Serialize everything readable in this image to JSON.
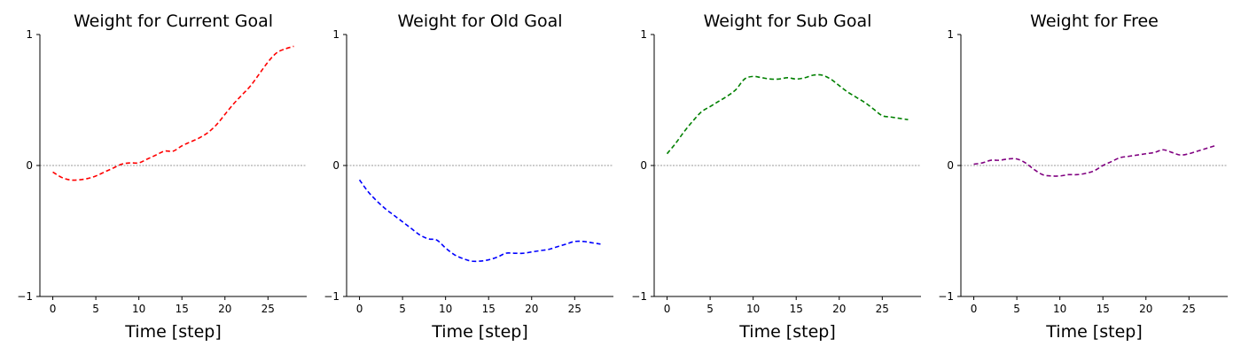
{
  "chart_data": [
    {
      "type": "line",
      "title": "Weight for Current Goal",
      "xlabel": "Time [step]",
      "ylabel": "",
      "xlim": [
        -1.5,
        29.5
      ],
      "ylim": [
        -1,
        1
      ],
      "xticks": [
        0,
        5,
        10,
        15,
        20,
        25
      ],
      "yticks": [
        -1,
        0,
        1
      ],
      "zero_line": true,
      "color": "#ff0000",
      "x": [
        0,
        1,
        2,
        3,
        4,
        5,
        6,
        7,
        8,
        9,
        10,
        11,
        12,
        13,
        14,
        15,
        16,
        17,
        18,
        19,
        20,
        21,
        22,
        23,
        24,
        25,
        26,
        27,
        28
      ],
      "values": [
        -0.05,
        -0.09,
        -0.11,
        -0.11,
        -0.1,
        -0.08,
        -0.05,
        -0.02,
        0.01,
        0.02,
        0.02,
        0.05,
        0.08,
        0.11,
        0.11,
        0.15,
        0.18,
        0.21,
        0.25,
        0.31,
        0.39,
        0.47,
        0.54,
        0.61,
        0.7,
        0.79,
        0.86,
        0.89,
        0.91
      ]
    },
    {
      "type": "line",
      "title": "Weight for Old Goal",
      "xlabel": "Time [step]",
      "ylabel": "",
      "xlim": [
        -1.5,
        29.5
      ],
      "ylim": [
        -1,
        1
      ],
      "xticks": [
        0,
        5,
        10,
        15,
        20,
        25
      ],
      "yticks": [
        -1,
        0,
        1
      ],
      "zero_line": true,
      "color": "#0000ff",
      "x": [
        0,
        1,
        2,
        3,
        4,
        5,
        6,
        7,
        8,
        9,
        10,
        11,
        12,
        13,
        14,
        15,
        16,
        17,
        18,
        19,
        20,
        21,
        22,
        23,
        24,
        25,
        26,
        27,
        28
      ],
      "values": [
        -0.11,
        -0.2,
        -0.27,
        -0.33,
        -0.38,
        -0.43,
        -0.48,
        -0.53,
        -0.56,
        -0.57,
        -0.63,
        -0.68,
        -0.71,
        -0.73,
        -0.73,
        -0.72,
        -0.7,
        -0.67,
        -0.67,
        -0.67,
        -0.66,
        -0.65,
        -0.64,
        -0.62,
        -0.6,
        -0.58,
        -0.58,
        -0.59,
        -0.6
      ]
    },
    {
      "type": "line",
      "title": "Weight for Sub Goal",
      "xlabel": "Time [step]",
      "ylabel": "",
      "xlim": [
        -1.5,
        29.5
      ],
      "ylim": [
        -1,
        1
      ],
      "xticks": [
        0,
        5,
        10,
        15,
        20,
        25
      ],
      "yticks": [
        -1,
        0,
        1
      ],
      "zero_line": true,
      "color": "#008000",
      "x": [
        0,
        1,
        2,
        3,
        4,
        5,
        6,
        7,
        8,
        9,
        10,
        11,
        12,
        13,
        14,
        15,
        16,
        17,
        18,
        19,
        20,
        21,
        22,
        23,
        24,
        25,
        26,
        27,
        28
      ],
      "values": [
        0.09,
        0.17,
        0.26,
        0.34,
        0.41,
        0.45,
        0.49,
        0.53,
        0.58,
        0.66,
        0.68,
        0.67,
        0.66,
        0.66,
        0.67,
        0.66,
        0.67,
        0.69,
        0.69,
        0.66,
        0.61,
        0.56,
        0.52,
        0.48,
        0.43,
        0.38,
        0.37,
        0.36,
        0.35
      ]
    },
    {
      "type": "line",
      "title": "Weight for Free",
      "xlabel": "Time [step]",
      "ylabel": "",
      "xlim": [
        -1.5,
        29.5
      ],
      "ylim": [
        -1,
        1
      ],
      "xticks": [
        0,
        5,
        10,
        15,
        20,
        25
      ],
      "yticks": [
        -1,
        0,
        1
      ],
      "zero_line": true,
      "color": "#800080",
      "x": [
        0,
        1,
        2,
        3,
        4,
        5,
        6,
        7,
        8,
        9,
        10,
        11,
        12,
        13,
        14,
        15,
        16,
        17,
        18,
        19,
        20,
        21,
        22,
        23,
        24,
        25,
        26,
        27,
        28
      ],
      "values": [
        0.01,
        0.02,
        0.04,
        0.04,
        0.05,
        0.05,
        0.02,
        -0.03,
        -0.07,
        -0.08,
        -0.08,
        -0.07,
        -0.07,
        -0.06,
        -0.04,
        0.0,
        0.03,
        0.06,
        0.07,
        0.08,
        0.09,
        0.1,
        0.12,
        0.1,
        0.08,
        0.09,
        0.11,
        0.13,
        0.15
      ]
    }
  ]
}
